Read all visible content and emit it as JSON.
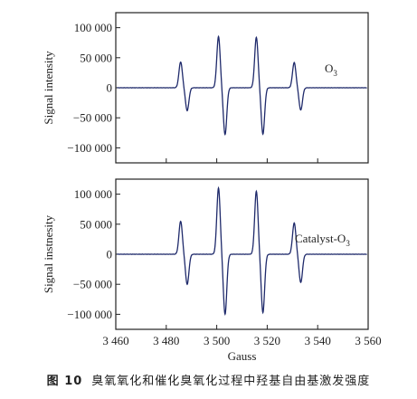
{
  "caption": {
    "figure_number": "图 10",
    "text": "臭氧氧化和催化臭氧化过程中羟基自由基激发强度"
  },
  "colors": {
    "line": "#1f2a6b",
    "axis": "#222222"
  },
  "chart_data": [
    {
      "type": "line",
      "series": [
        {
          "name": "O3",
          "label_main": "O",
          "label_sub": "3"
        }
      ],
      "ylabel": "Signal intensity",
      "xlim": [
        3460,
        3560
      ],
      "ylim": [
        -125000,
        125000
      ],
      "yticks": [
        -100000,
        -50000,
        0,
        50000,
        100000
      ],
      "ytick_labels": [
        "−100 000",
        "−50 000",
        "0",
        "50 000",
        "100 000"
      ],
      "legend_position": "right",
      "peaks": [
        {
          "x": 3487,
          "pos": 43000,
          "neg": -38000
        },
        {
          "x": 3502,
          "pos": 85000,
          "neg": -78000
        },
        {
          "x": 3517,
          "pos": 84000,
          "neg": -77000
        },
        {
          "x": 3532,
          "pos": 42000,
          "neg": -37000
        }
      ]
    },
    {
      "type": "line",
      "series": [
        {
          "name": "Catalyst-O3",
          "label_main": "Catalyst-O",
          "label_sub": "3"
        }
      ],
      "ylabel": "Signal instnesity",
      "xlabel": "Gauss",
      "xlim": [
        3460,
        3560
      ],
      "ylim": [
        -125000,
        125000
      ],
      "xticks": [
        3460,
        3480,
        3500,
        3520,
        3540,
        3560
      ],
      "xtick_labels": [
        "3 460",
        "3 480",
        "3 500",
        "3 520",
        "3 540",
        "3 560"
      ],
      "yticks": [
        -100000,
        -50000,
        0,
        50000,
        100000
      ],
      "ytick_labels": [
        "−100 000",
        "−50 000",
        "0",
        "50 000",
        "100 000"
      ],
      "legend_position": "right",
      "peaks": [
        {
          "x": 3487,
          "pos": 55000,
          "neg": -50000
        },
        {
          "x": 3502,
          "pos": 110000,
          "neg": -100000
        },
        {
          "x": 3517,
          "pos": 105000,
          "neg": -97000
        },
        {
          "x": 3532,
          "pos": 52000,
          "neg": -47000
        }
      ]
    }
  ]
}
